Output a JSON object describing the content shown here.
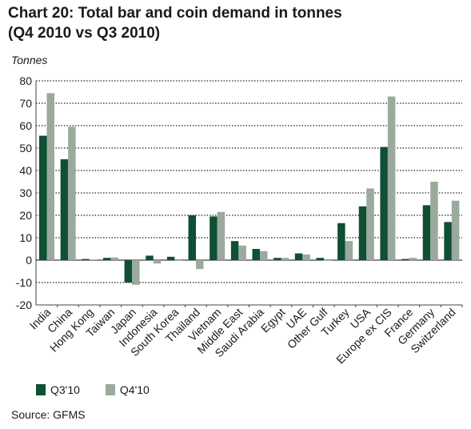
{
  "title_line1": "Chart 20: Total bar and coin demand in tonnes",
  "title_line2": "(Q4 2010 vs Q3 2010)",
  "source": "Source: GFMS",
  "colors": {
    "q3": "#0f4f34",
    "q4": "#9aaa9c",
    "grid": "#222222",
    "axis": "#444444"
  },
  "chart_data": {
    "type": "bar",
    "title": "Chart 20: Total bar and coin demand in tonnes",
    "subtitle": "(Q4 2010 vs Q3 2010)",
    "ylabel": "Tonnes",
    "xlabel": "",
    "ylim": [
      -20,
      80
    ],
    "yticks": [
      -20,
      -10,
      0,
      10,
      20,
      30,
      40,
      50,
      60,
      70,
      80
    ],
    "grid": true,
    "legend_position": "bottom-left",
    "categories": [
      "India",
      "China",
      "Hong Kong",
      "Taiwan",
      "Japan",
      "Indonesia",
      "South Korea",
      "Thailand",
      "Vietnam",
      "Middle East",
      "Saudi Arabia",
      "Egypt",
      "UAE",
      "Other Gulf",
      "Turkey",
      "USA",
      "Europe ex CIS",
      "France",
      "Germany",
      "Switzerland"
    ],
    "series": [
      {
        "name": "Q3'10",
        "color": "#0f4f34",
        "values": [
          55.5,
          45,
          0.5,
          1,
          -10,
          2,
          1.5,
          20,
          19.5,
          8.5,
          5,
          1,
          3,
          1,
          16.5,
          24,
          50.5,
          0.5,
          24.5,
          17
        ]
      },
      {
        "name": "Q4'10",
        "color": "#9aaa9c",
        "values": [
          74.5,
          59.5,
          0.3,
          1.2,
          -11,
          -1.5,
          0,
          -4,
          21.5,
          6.5,
          4,
          1,
          2.5,
          0,
          8.5,
          32,
          73,
          1,
          35,
          26.5
        ]
      }
    ]
  }
}
